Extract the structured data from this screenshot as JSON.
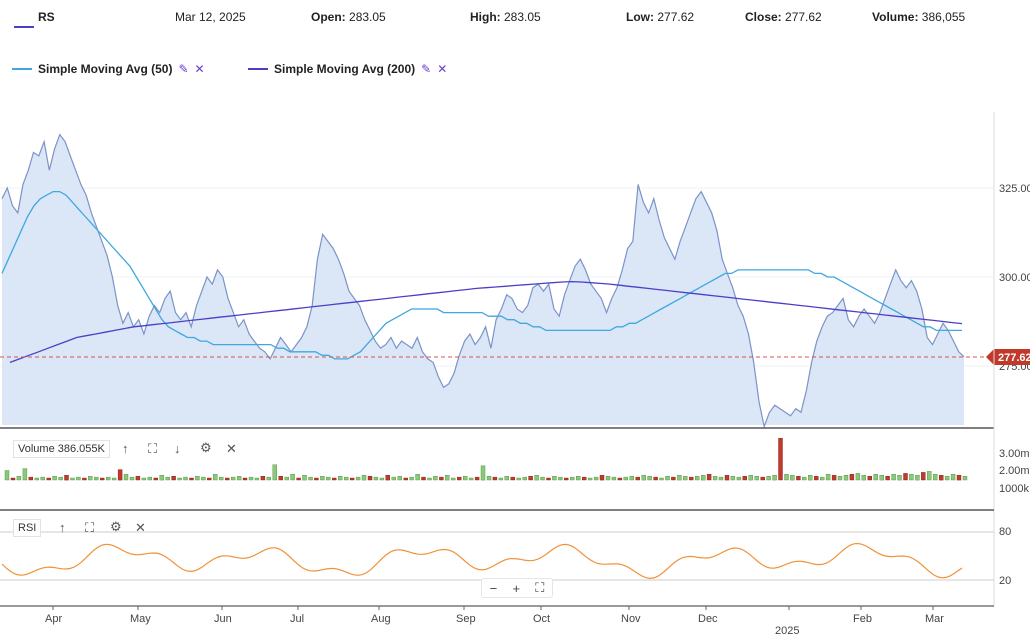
{
  "header": {
    "symbol": "RS",
    "date": "Mar 12, 2025",
    "open_label": "Open:",
    "open": "283.05",
    "high_label": "High:",
    "high": "283.05",
    "low_label": "Low:",
    "low": "277.62",
    "close_label": "Close:",
    "close": "277.62",
    "volume_label": "Volume:",
    "volume": "386,055"
  },
  "indicators": [
    {
      "label": "Simple Moving Avg (50)",
      "color": "#3fa8e0"
    },
    {
      "label": "Simple Moving Avg (200)",
      "color": "#4b3fc8"
    }
  ],
  "icons": {
    "edit": "pencil-icon",
    "remove": "close-icon",
    "up": "arrow-up-icon",
    "expand": "expand-icon",
    "down": "arrow-down-icon",
    "settings": "gear-icon"
  },
  "volume_panel": {
    "label": "Volume 386.055K",
    "ticks": [
      "3.00m",
      "2.00m",
      "1000k"
    ]
  },
  "rsi_panel": {
    "label": "RSI",
    "ticks": [
      "80",
      "20"
    ]
  },
  "price_tag": "277.62",
  "zoom": {
    "minus": "−",
    "plus": "+",
    "fit": "⛶"
  },
  "colors": {
    "price_line": "#7b93c8",
    "price_fill": "#dbe6f7",
    "vol_up": "#8cc87a",
    "vol_down": "#c0392b",
    "rsi": "#f0923a",
    "tag": "#c0392b"
  },
  "chart_data": {
    "type": "area",
    "ylim": [
      255,
      345
    ],
    "y_ticks": [
      325,
      300,
      275
    ],
    "y_tick_labels": [
      "325.00",
      "300.00",
      "275.00"
    ],
    "x_labels": [
      "Apr",
      "May",
      "Jun",
      "Jul",
      "Aug",
      "Sep",
      "Oct",
      "Nov",
      "Dec",
      "2025",
      "Feb",
      "Mar"
    ],
    "x_sublabel": "2025",
    "series": [
      {
        "values": [
          322,
          325,
          320,
          318,
          326,
          330,
          335,
          334,
          338,
          330,
          336,
          340,
          338,
          334,
          330,
          326,
          323,
          318,
          314,
          310,
          306,
          300,
          292,
          287,
          290,
          286,
          288,
          284,
          289,
          292,
          290,
          294,
          296,
          290,
          288,
          290,
          286,
          292,
          296,
          300,
          298,
          302,
          300,
          294,
          290,
          286,
          288,
          284,
          282,
          280,
          279,
          277,
          280,
          283,
          281,
          279,
          281,
          283,
          286,
          292,
          305,
          312,
          310,
          308,
          305,
          301,
          296,
          294,
          292,
          288,
          285,
          282,
          280,
          281,
          283,
          280,
          282,
          281,
          280,
          283,
          279,
          277,
          276,
          272,
          269,
          270,
          273,
          278,
          282,
          284,
          281,
          283,
          286,
          280,
          288,
          291,
          295,
          294,
          291,
          290,
          292,
          297,
          298,
          296,
          298,
          291,
          289,
          295,
          299,
          303,
          305,
          302,
          298,
          296,
          294,
          290,
          294,
          297,
          302,
          308,
          310,
          326,
          321,
          318,
          322,
          316,
          311,
          308,
          305,
          310,
          314,
          318,
          322,
          324,
          321,
          318,
          313,
          305,
          301,
          297,
          292,
          289,
          284,
          276,
          265,
          258,
          262,
          264,
          263,
          262,
          261,
          263,
          262,
          268,
          276,
          282,
          286,
          289,
          290,
          292,
          294,
          288,
          286,
          289,
          291,
          289,
          287,
          290,
          294,
          298,
          302,
          299,
          297,
          299,
          296,
          291,
          283,
          281,
          284,
          287,
          285,
          282,
          279,
          277.6
        ]
      },
      {
        "name": "Simple Moving Avg (50)",
        "values": [
          301,
          305,
          309,
          313,
          317,
          320,
          322,
          323,
          324,
          324,
          323,
          321,
          319,
          317,
          315,
          313,
          311,
          309,
          307,
          305,
          303,
          300,
          297,
          294,
          291,
          288,
          286,
          285,
          284,
          283,
          283,
          282,
          282,
          281,
          281,
          281,
          281,
          281,
          281,
          281,
          281,
          281,
          281,
          280,
          280,
          279,
          279,
          279,
          279,
          279,
          278,
          278,
          277,
          277,
          277,
          278,
          279,
          281,
          283,
          285,
          287,
          288,
          289,
          290,
          291,
          291,
          291,
          291,
          291,
          290,
          290,
          290,
          290,
          290,
          290,
          290,
          289,
          289,
          289,
          288,
          288,
          287,
          287,
          286,
          286,
          285,
          285,
          285,
          285,
          285,
          285,
          285,
          285,
          285,
          285,
          285,
          286,
          286,
          287,
          287,
          288,
          289,
          290,
          291,
          292,
          293,
          294,
          295,
          296,
          297,
          298,
          299,
          300,
          301,
          301,
          302,
          302,
          302,
          302,
          302,
          302,
          302,
          302,
          302,
          302,
          302,
          302,
          301,
          301,
          300,
          300,
          299,
          298,
          297,
          296,
          295,
          294,
          293,
          292,
          291,
          290,
          289,
          288,
          287,
          286,
          286,
          285,
          285,
          285,
          285,
          285
        ]
      },
      {
        "name": "Simple Moving Avg (200)",
        "values": [
          276,
          277,
          278,
          279,
          280,
          281,
          282,
          283,
          283.5,
          284,
          284.5,
          285,
          285.5,
          286,
          286.3,
          286.6,
          286.9,
          287.2,
          287.5,
          287.8,
          288.1,
          288.4,
          288.7,
          289,
          289.3,
          289.6,
          289.9,
          290.2,
          290.5,
          290.8,
          291.1,
          291.4,
          291.7,
          292,
          292.3,
          292.6,
          292.9,
          293.2,
          293.5,
          293.8,
          294.1,
          294.4,
          294.7,
          295,
          295.3,
          295.6,
          295.9,
          296.2,
          296.5,
          296.8,
          297,
          297.2,
          297.4,
          297.6,
          297.8,
          298,
          298.2,
          298.4,
          298.6,
          298.7,
          298.6,
          298.4,
          298.2,
          298,
          297.7,
          297.4,
          297.1,
          296.8,
          296.5,
          296.2,
          295.9,
          295.6,
          295.3,
          295,
          294.7,
          294.4,
          294.1,
          293.8,
          293.5,
          293.2,
          292.9,
          292.6,
          292.3,
          292,
          291.7,
          291.4,
          291.1,
          290.8,
          290.5,
          290.2,
          289.9,
          289.6,
          289.3,
          289,
          288.7,
          288.4,
          288.1,
          287.8,
          287.5,
          287.2,
          286.9
        ]
      }
    ],
    "volume": [
      1.0,
      0.2,
      0.4,
      1.2,
      0.3,
      0.2,
      0.3,
      0.2,
      0.4,
      0.3,
      0.5,
      0.2,
      0.3,
      0.2,
      0.4,
      0.3,
      0.2,
      0.3,
      0.2,
      1.1,
      0.6,
      0.3,
      0.4,
      0.2,
      0.3,
      0.2,
      0.5,
      0.3,
      0.4,
      0.2,
      0.3,
      0.2,
      0.4,
      0.3,
      0.2,
      0.6,
      0.3,
      0.2,
      0.3,
      0.4,
      0.2,
      0.3,
      0.2,
      0.4,
      0.3,
      1.6,
      0.4,
      0.3,
      0.6,
      0.2,
      0.5,
      0.3,
      0.2,
      0.4,
      0.3,
      0.2,
      0.4,
      0.3,
      0.2,
      0.3,
      0.5,
      0.4,
      0.3,
      0.2,
      0.5,
      0.3,
      0.4,
      0.2,
      0.3,
      0.6,
      0.3,
      0.2,
      0.4,
      0.3,
      0.5,
      0.2,
      0.3,
      0.4,
      0.2,
      0.3,
      1.5,
      0.4,
      0.3,
      0.2,
      0.4,
      0.3,
      0.2,
      0.3,
      0.4,
      0.5,
      0.3,
      0.2,
      0.4,
      0.3,
      0.2,
      0.3,
      0.4,
      0.3,
      0.2,
      0.3,
      0.5,
      0.4,
      0.3,
      0.2,
      0.3,
      0.4,
      0.3,
      0.5,
      0.4,
      0.3,
      0.2,
      0.4,
      0.3,
      0.5,
      0.4,
      0.3,
      0.4,
      0.5,
      0.6,
      0.4,
      0.3,
      0.5,
      0.4,
      0.3,
      0.4,
      0.5,
      0.4,
      0.3,
      0.4,
      0.5,
      4.4,
      0.6,
      0.5,
      0.4,
      0.3,
      0.5,
      0.4,
      0.3,
      0.6,
      0.5,
      0.4,
      0.5,
      0.6,
      0.7,
      0.5,
      0.4,
      0.6,
      0.5,
      0.4,
      0.6,
      0.5,
      0.7,
      0.6,
      0.5,
      0.8,
      0.9,
      0.6,
      0.5,
      0.4,
      0.6,
      0.5,
      0.4
    ]
  }
}
